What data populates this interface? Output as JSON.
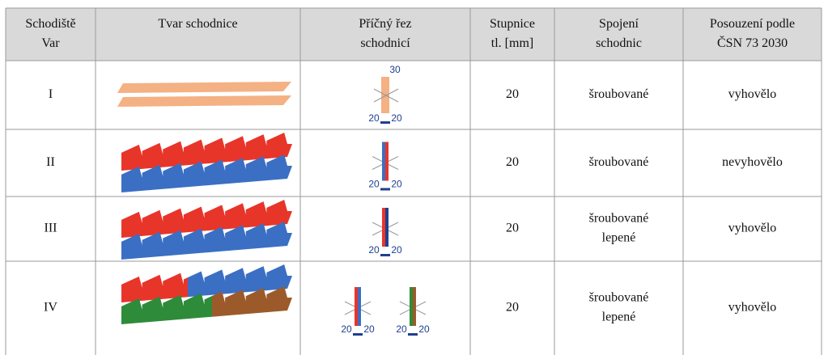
{
  "table": {
    "header": [
      [
        "Schodiště",
        "Var"
      ],
      [
        "Tvar schodnice"
      ],
      [
        "Příčný řez",
        "schodnicí"
      ],
      [
        "Stupnice",
        "tl. [mm]"
      ],
      [
        "Spojení",
        "schodnic"
      ],
      [
        "Posouzení podle",
        "ČSN 73 2030"
      ]
    ],
    "rows": [
      {
        "var": "I",
        "section_labels": [
          "30",
          "20",
          "20"
        ],
        "thickness": "20",
        "joint": [
          "šroubované"
        ],
        "assessment": "vyhovělo"
      },
      {
        "var": "II",
        "section_labels": [
          "20",
          "20"
        ],
        "thickness": "20",
        "joint": [
          "šroubované"
        ],
        "assessment": "nevyhovělo"
      },
      {
        "var": "III",
        "section_labels": [
          "20",
          "20"
        ],
        "thickness": "20",
        "joint": [
          "šroubované",
          "lepené"
        ],
        "assessment": "vyhovělo"
      },
      {
        "var": "IV",
        "section_labels": [
          "20",
          "20",
          "20",
          "20"
        ],
        "thickness": "20",
        "joint": [
          "šroubované",
          "lepené"
        ],
        "assessment": "vyhovělo"
      }
    ]
  }
}
